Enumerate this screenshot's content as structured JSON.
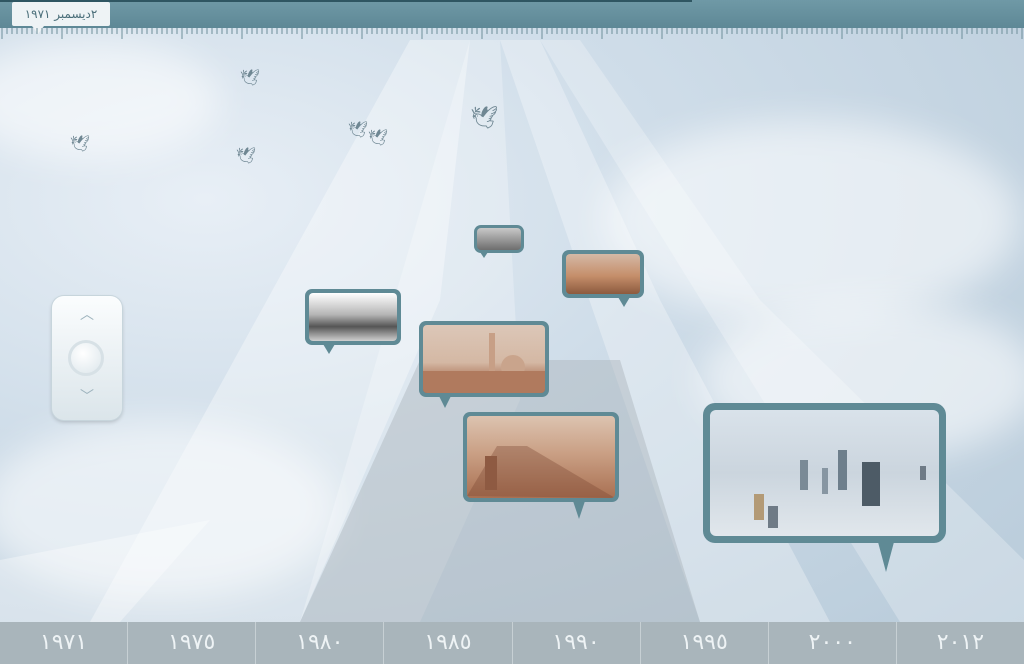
{
  "header": {
    "date_label": "٢ديسمبر ١٩٧١"
  },
  "timeline": {
    "years": [
      "١٩٧١",
      "١٩٧٥",
      "١٩٨٠",
      "١٩٨٥",
      "١٩٩٠",
      "١٩٩٥",
      "٢٠٠٠",
      "٢٠١٢"
    ]
  },
  "colors": {
    "accent": "#5f8a95",
    "top_bar": "#6f99a6",
    "timeline_bar": "#a9b5bb",
    "sky": "#cfdde9"
  },
  "icons": [
    "bird-icon",
    "chevron-up-icon",
    "chevron-down-icon",
    "circle-knob-icon"
  ]
}
